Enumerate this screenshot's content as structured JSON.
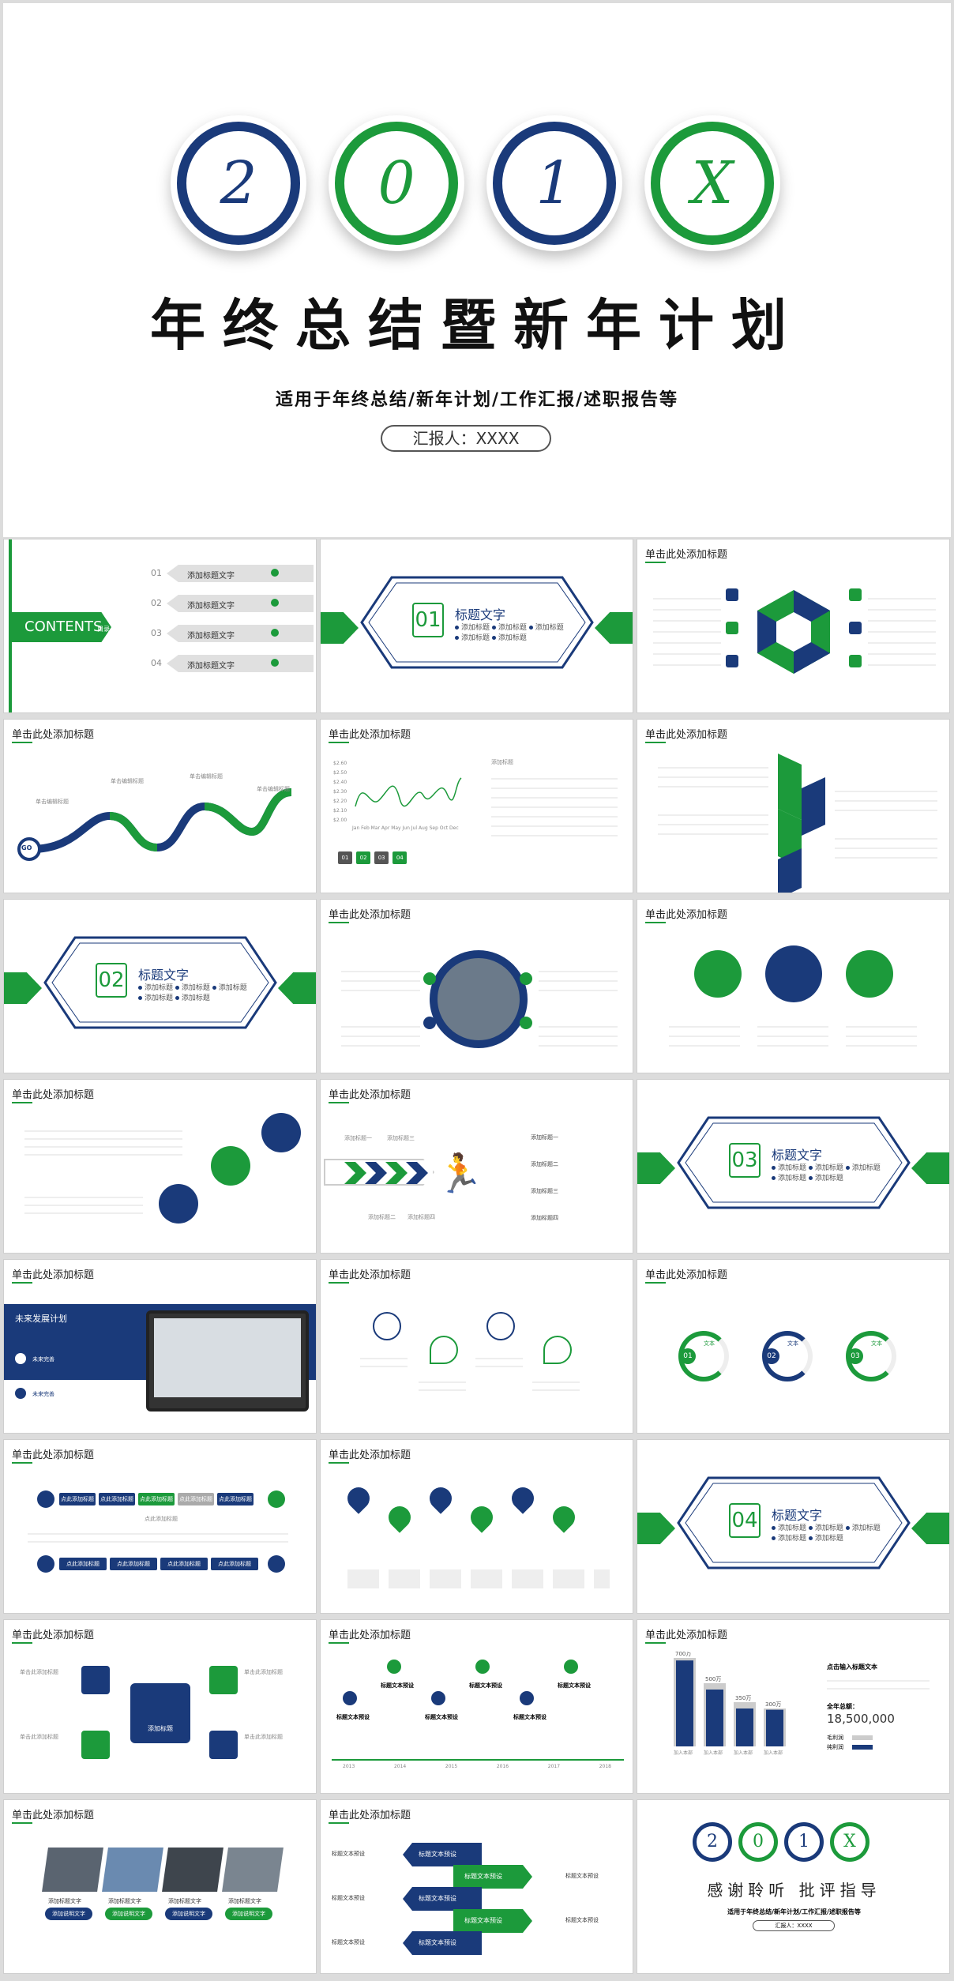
{
  "cover": {
    "digits": [
      "2",
      "0",
      "1",
      "X"
    ],
    "title": "年终总结暨新年计划",
    "subtitle": "适用于年终总结/新年计划/工作汇报/述职报告等",
    "reporter": "汇报人：XXXX"
  },
  "common": {
    "slide_title": "单击此处添加标题"
  },
  "contents": {
    "label": "CONTENTS",
    "label_sub": "目录",
    "items": [
      {
        "num": "01",
        "text": "添加标题文字"
      },
      {
        "num": "02",
        "text": "添加标题文字"
      },
      {
        "num": "03",
        "text": "添加标题文字"
      },
      {
        "num": "04",
        "text": "添加标题文字"
      }
    ]
  },
  "sections": [
    {
      "num": "01",
      "title": "标题文字",
      "items": [
        "添加标题",
        "添加标题",
        "添加标题",
        "添加标题",
        "添加标题"
      ]
    },
    {
      "num": "02",
      "title": "标题文字",
      "items": [
        "添加标题",
        "添加标题",
        "添加标题",
        "添加标题",
        "添加标题"
      ]
    },
    {
      "num": "03",
      "title": "标题文字",
      "items": [
        "添加标题",
        "添加标题",
        "添加标题",
        "添加标题",
        "添加标题"
      ]
    },
    {
      "num": "04",
      "title": "标题文字",
      "items": [
        "添加标题",
        "添加标题",
        "添加标题",
        "添加标题",
        "添加标题"
      ]
    }
  ],
  "road": {
    "go": "GO",
    "labels": [
      "单击编辑标题",
      "单击编辑标题",
      "单击编辑标题",
      "单击编辑标题"
    ]
  },
  "linechart": {
    "months": "Jan Feb Mar Apr May Jun Jul Aug Sep Oct Dec",
    "yticks": [
      "$2.60",
      "$2.50",
      "$2.40",
      "$2.30",
      "$2.20",
      "$2.10",
      "$2.00"
    ],
    "btns": [
      "01",
      "02",
      "03",
      "04"
    ],
    "side_title": "添加标题"
  },
  "plan": {
    "title": "未来发展计划",
    "items": [
      "未来完善",
      "未来完善"
    ]
  },
  "arrow_steps": {
    "top": [
      "添加标题一",
      "添加标题三"
    ],
    "bottom": [
      "添加标题二",
      "添加标题四"
    ],
    "right": [
      "添加标题一",
      "添加标题二",
      "添加标题三",
      "添加标题四"
    ]
  },
  "progress": {
    "items": [
      {
        "n": "01",
        "t": "文本"
      },
      {
        "n": "02",
        "t": "文本"
      },
      {
        "n": "03",
        "t": "文本"
      }
    ]
  },
  "flow": {
    "row1": [
      "点此添加标题",
      "点此添加标题",
      "点此添加标题",
      "点此添加标题",
      "点此添加标题"
    ],
    "row2": [
      "点此添加标题",
      "点此添加标题",
      "点此添加标题",
      "点此添加标题"
    ],
    "mid": "点此添加标题"
  },
  "key": {
    "center": "添加标题",
    "labels": [
      "单击此添加标题",
      "单击此添加标题",
      "单击此添加标题",
      "单击此添加标题"
    ]
  },
  "timeline": {
    "years": [
      "2013",
      "2014",
      "2015",
      "2016",
      "2017",
      "2018"
    ],
    "label": "标题文本预设"
  },
  "bars": {
    "values": [
      "700万",
      "500万",
      "350万",
      "300万"
    ],
    "inner": [
      "680万",
      "450万",
      "300万",
      "290万"
    ],
    "cats": [
      "加入本部",
      "加入本部",
      "加入本部",
      "加入本部"
    ],
    "side_title": "点击输入标题文本",
    "total_label": "全年总额：",
    "total": "18,500,000",
    "legend": [
      "毛利润",
      "纯利润"
    ]
  },
  "photos": {
    "captions": [
      "添加标题文字",
      "添加标题文字",
      "添加标题文字",
      "添加标题文字"
    ],
    "btn": "添加说明文字"
  },
  "arrows2": {
    "label": "标题文本预设"
  },
  "thanks": {
    "digits": [
      "2",
      "0",
      "1",
      "X"
    ],
    "text": "感谢聆听  批评指导",
    "sub": "适用于年终总结/新年计划/工作汇报/述职报告等",
    "reporter": "汇报人：XXXX"
  },
  "colors": {
    "blue": "#1a3a7a",
    "green": "#1c9a3b"
  }
}
